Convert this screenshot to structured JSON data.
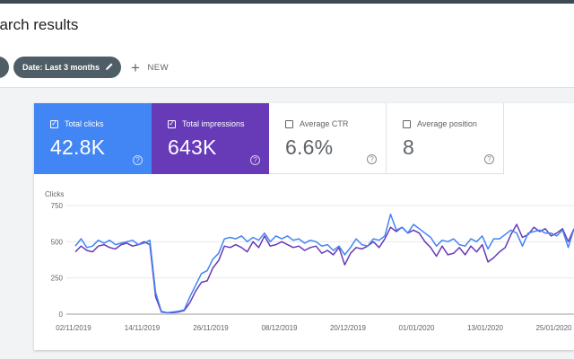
{
  "header": {
    "title": "earch results"
  },
  "filters": {
    "date_chip": "Date: Last 3 months",
    "new_label": "NEW"
  },
  "cards": [
    {
      "label": "Total clicks",
      "value": "42.8K",
      "checked": true,
      "color": "#4285f4"
    },
    {
      "label": "Total impressions",
      "value": "643K",
      "checked": true,
      "color": "#673ab7"
    },
    {
      "label": "Average CTR",
      "value": "6.6%",
      "checked": false
    },
    {
      "label": "Average position",
      "value": "8",
      "checked": false
    }
  ],
  "chart_data": {
    "type": "line",
    "ylabel": "Clicks",
    "ylim": [
      0,
      750
    ],
    "yticks": [
      "0",
      "250",
      "500",
      "750"
    ],
    "xticks": [
      "02/11/2019",
      "14/11/2019",
      "26/11/2019",
      "08/12/2019",
      "20/12/2019",
      "01/01/2020",
      "13/01/2020",
      "25/01/2020"
    ],
    "grid": true,
    "series": [
      {
        "name": "Total clicks",
        "color": "#4285f4",
        "values": [
          470,
          520,
          460,
          470,
          510,
          490,
          510,
          480,
          490,
          500,
          510,
          480,
          490,
          510,
          150,
          20,
          10,
          15,
          20,
          30,
          120,
          200,
          280,
          300,
          380,
          420,
          520,
          530,
          520,
          540,
          500,
          530,
          510,
          560,
          500,
          540,
          520,
          540,
          510,
          520,
          490,
          510,
          500,
          470,
          480,
          440,
          470,
          410,
          460,
          520,
          480,
          470,
          520,
          510,
          540,
          690,
          580,
          600,
          560,
          620,
          590,
          560,
          530,
          470,
          510,
          500,
          520,
          480,
          470,
          520,
          500,
          540,
          450,
          520,
          520,
          550,
          580,
          560,
          470,
          560,
          570,
          580,
          560,
          560,
          540,
          580,
          460,
          590
        ]
      },
      {
        "name": "Total impressions",
        "color": "#673ab7",
        "values": [
          430,
          470,
          440,
          430,
          470,
          480,
          460,
          450,
          480,
          490,
          470,
          480,
          500,
          480,
          120,
          15,
          10,
          10,
          15,
          25,
          80,
          160,
          220,
          230,
          320,
          370,
          470,
          460,
          480,
          460,
          430,
          500,
          460,
          540,
          470,
          480,
          500,
          480,
          460,
          470,
          440,
          460,
          470,
          420,
          440,
          410,
          460,
          340,
          420,
          460,
          450,
          470,
          500,
          460,
          520,
          600,
          570,
          600,
          560,
          580,
          560,
          500,
          460,
          400,
          470,
          410,
          420,
          460,
          410,
          470,
          430,
          480,
          360,
          390,
          430,
          460,
          550,
          620,
          530,
          550,
          600,
          570,
          590,
          540,
          560,
          590,
          500,
          590
        ]
      }
    ]
  }
}
